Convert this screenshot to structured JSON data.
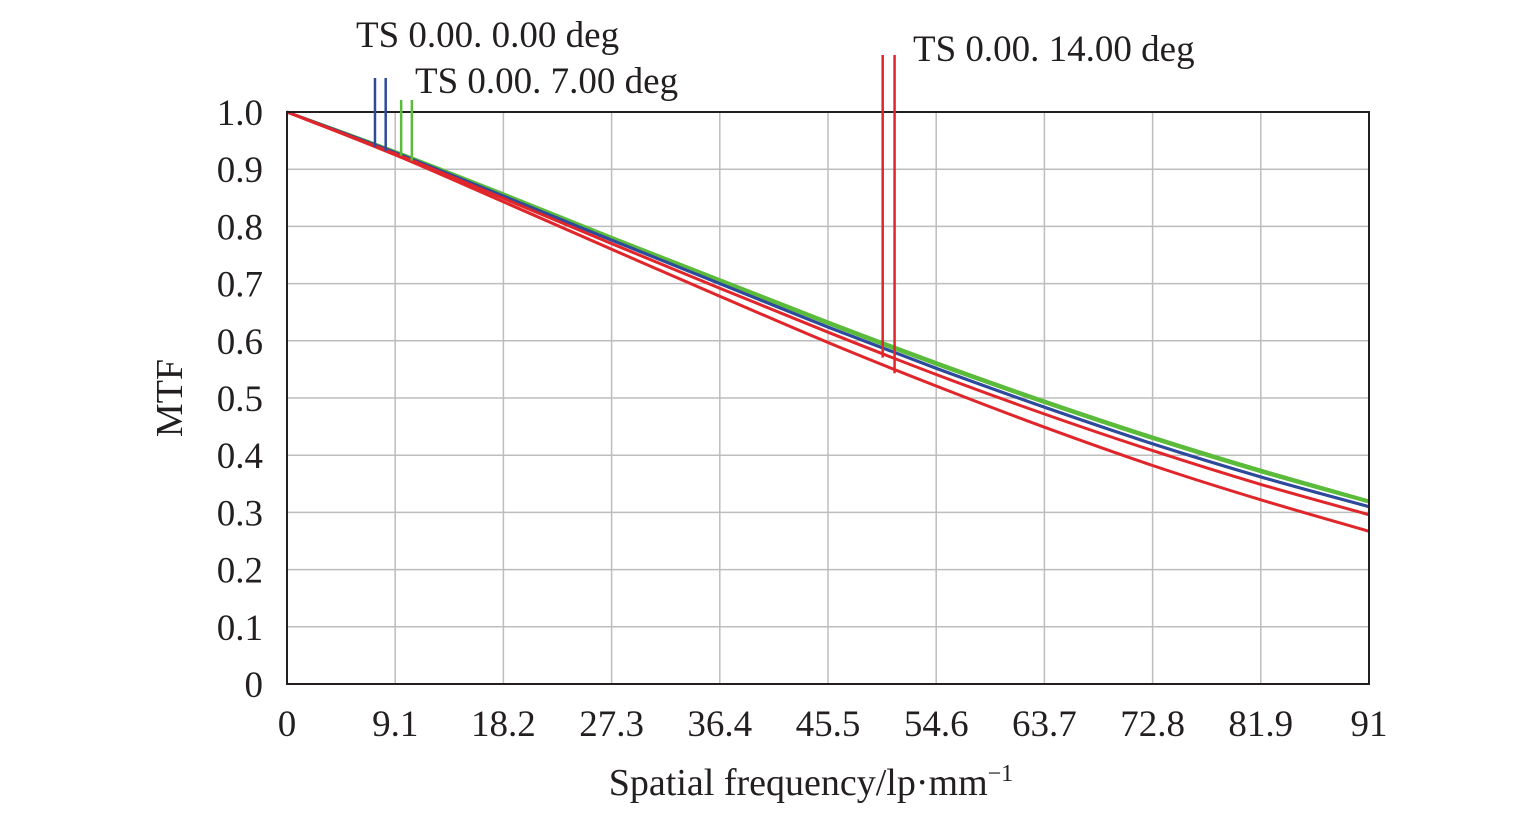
{
  "chart_data": {
    "type": "line",
    "xlabel": "Spatial frequency/lp·mm",
    "xlabel_sup": "−1",
    "ylabel": "MTF",
    "xlim": [
      0,
      91
    ],
    "ylim": [
      0,
      1.0
    ],
    "x_ticks": [
      0,
      9.1,
      18.2,
      27.3,
      36.4,
      45.5,
      54.6,
      63.7,
      72.8,
      81.9,
      91
    ],
    "x_tick_labels": [
      "0",
      "9.1",
      "18.2",
      "27.3",
      "36.4",
      "45.5",
      "54.6",
      "63.7",
      "72.8",
      "81.9",
      "91"
    ],
    "y_ticks": [
      0,
      0.1,
      0.2,
      0.3,
      0.4,
      0.5,
      0.6,
      0.7,
      0.8,
      0.9,
      1.0
    ],
    "y_tick_labels": [
      "0",
      "0.1",
      "0.2",
      "0.3",
      "0.4",
      "0.5",
      "0.6",
      "0.7",
      "0.8",
      "0.9",
      "1.0"
    ],
    "grid": true,
    "x": [
      0,
      9.1,
      18.2,
      27.3,
      36.4,
      45.5,
      54.6,
      63.7,
      72.8,
      81.9,
      91
    ],
    "series": [
      {
        "name": "TS 0.00. 0.00 deg",
        "group": 0,
        "color": "#2e4a9c",
        "values": [
          1.0,
          0.929,
          0.853,
          0.776,
          0.7,
          0.624,
          0.552,
          0.484,
          0.42,
          0.362,
          0.31
        ]
      },
      {
        "name": "TS 0.00. 0.00 deg",
        "group": 0,
        "color": "#2e4a9c",
        "values": [
          1.0,
          0.929,
          0.853,
          0.776,
          0.7,
          0.624,
          0.552,
          0.484,
          0.42,
          0.362,
          0.31
        ]
      },
      {
        "name": "TS 0.00. 7.00 deg",
        "group": 1,
        "color": "#5bbb3a",
        "values": [
          1.0,
          0.931,
          0.857,
          0.781,
          0.707,
          0.633,
          0.562,
          0.495,
          0.432,
          0.374,
          0.32
        ]
      },
      {
        "name": "TS 0.00. 7.00 deg",
        "group": 1,
        "color": "#5bbb3a",
        "values": [
          1.0,
          0.93,
          0.855,
          0.779,
          0.704,
          0.63,
          0.559,
          0.492,
          0.429,
          0.371,
          0.318
        ]
      },
      {
        "name": "TS 0.00. 14.00 deg",
        "group": 2,
        "color": "#e0262a",
        "values": [
          1.0,
          0.927,
          0.849,
          0.77,
          0.692,
          0.615,
          0.541,
          0.472,
          0.408,
          0.349,
          0.296
        ]
      },
      {
        "name": "TS 0.00. 14.00 deg",
        "group": 2,
        "color": "#e0262a",
        "values": [
          1.0,
          0.925,
          0.843,
          0.76,
          0.678,
          0.597,
          0.521,
          0.449,
          0.382,
          0.322,
          0.267
        ]
      }
    ],
    "legend": [
      {
        "text": "TS 0.00. 0.00 deg",
        "color": "#2e4a9c",
        "marker_x": [
          7.4,
          8.3
        ]
      },
      {
        "text": "TS 0.00. 7.00 deg",
        "color": "#5bbb3a",
        "marker_x": [
          9.6,
          10.5
        ]
      },
      {
        "text": "TS 0.00. 14.00 deg",
        "color": "#e0262a",
        "marker_x": [
          50.1,
          51.1
        ]
      }
    ]
  }
}
